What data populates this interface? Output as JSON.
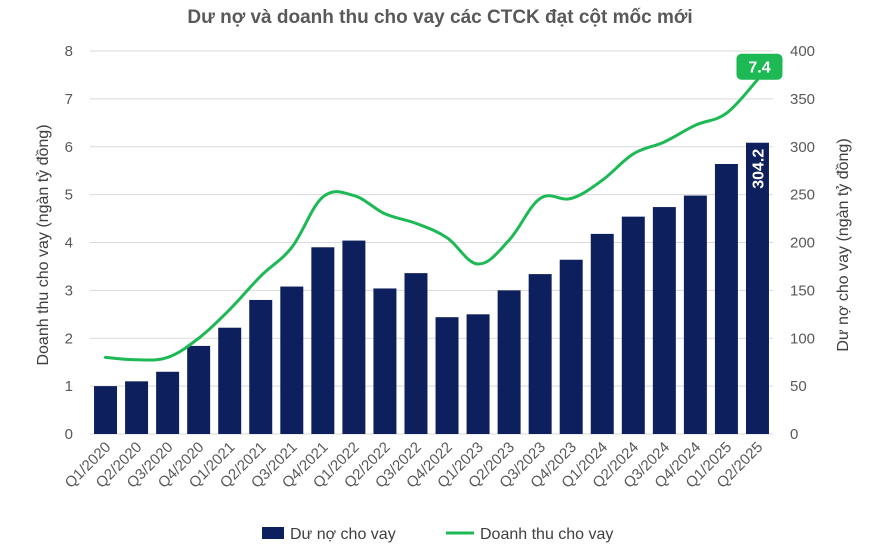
{
  "chart_data": {
    "type": "bar",
    "title": "Dư nợ và doanh thu cho vay các CTCK đạt cột mốc mới",
    "ylabel_left": "Doanh thu cho vay (ngàn tỷ đồng)",
    "ylabel_right": "Dư nợ cho vay (ngàn tỷ đồng)",
    "ylim_left": [
      0,
      8
    ],
    "ylim_right": [
      0,
      400
    ],
    "yticks_left": [
      "0",
      "1",
      "2",
      "3",
      "4",
      "5",
      "6",
      "7",
      "8"
    ],
    "yticks_right": [
      "0",
      "50",
      "100",
      "150",
      "200",
      "250",
      "300",
      "350",
      "400"
    ],
    "grid": true,
    "legend_position": "bottom",
    "categories": [
      "Q1/2020",
      "Q2/2020",
      "Q3/2020",
      "Q4/2020",
      "Q1/2021",
      "Q2/2021",
      "Q3/2021",
      "Q4/2021",
      "Q1/2022",
      "Q2/2022",
      "Q3/2022",
      "Q4/2022",
      "Q1/2023",
      "Q2/2023",
      "Q3/2023",
      "Q4/2023",
      "Q1/2024",
      "Q2/2024",
      "Q3/2024",
      "Q4/2024",
      "Q1/2025",
      "Q2/2025"
    ],
    "series": [
      {
        "name": "Dư nợ cho vay",
        "type": "bar",
        "axis": "right",
        "color": "#0d1f5c",
        "values": [
          50,
          55,
          65,
          92,
          111,
          140,
          154,
          195,
          202,
          152,
          168,
          122,
          125,
          150,
          167,
          182,
          209,
          227,
          237,
          249,
          282,
          304.2
        ],
        "labels": {
          "21": "304.2"
        }
      },
      {
        "name": "Doanh thu cho vay",
        "type": "line",
        "axis": "left",
        "color": "#1db954",
        "values": [
          1.6,
          1.55,
          1.6,
          2.0,
          2.6,
          3.3,
          3.9,
          4.95,
          4.98,
          4.6,
          4.4,
          4.1,
          3.55,
          4.05,
          4.92,
          4.92,
          5.3,
          5.85,
          6.1,
          6.45,
          6.7,
          7.4
        ],
        "labels": {
          "21": "7.4"
        }
      }
    ]
  }
}
